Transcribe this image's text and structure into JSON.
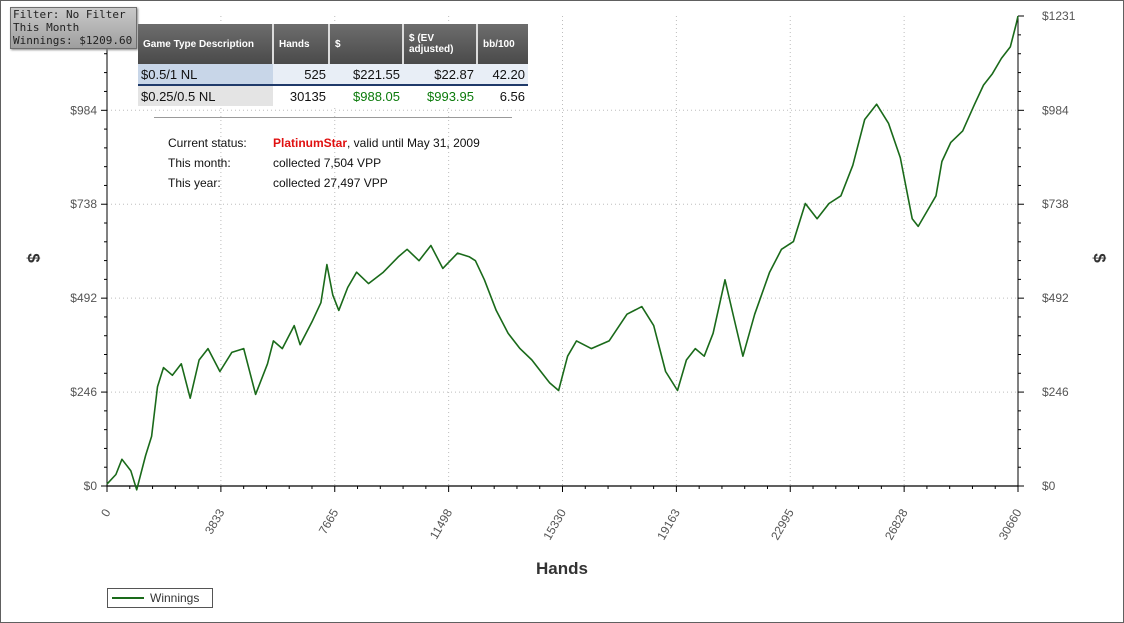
{
  "filter_box": {
    "line1": "Filter: No Filter",
    "line2": "This Month",
    "line3": "Winnings: $1209.60"
  },
  "stats_table": {
    "headers": [
      "Game Type Description",
      "Hands",
      "$",
      "$ (EV adjusted)",
      "bb/100"
    ],
    "rows": [
      [
        "$0.5/1 NL",
        "525",
        "$221.55",
        "$22.87",
        "42.20"
      ],
      [
        "$0.25/0.5 NL",
        "30135",
        "$988.05",
        "$993.95",
        "6.56"
      ]
    ]
  },
  "status": {
    "current_label": "Current status:",
    "level": "PlatinumStar",
    "valid_text": ", valid until May 31, 2009",
    "month_label": "This month:",
    "month_value": "collected 7,504 VPP",
    "year_label": "This year:",
    "year_value": "collected 27,497 VPP"
  },
  "colors": {
    "series": "#1a6a1a",
    "status_level": "#e01010",
    "table_header": "#555555",
    "green_value": "#0a7a0a"
  },
  "chart_data": {
    "type": "line",
    "xlabel": "Hands",
    "ylabel": "$",
    "ylabel_right": "$",
    "xlim": [
      0,
      30660
    ],
    "ylim": [
      0,
      1231
    ],
    "x_ticks": [
      "0",
      "3833",
      "7665",
      "11498",
      "15330",
      "19163",
      "22995",
      "26828",
      "30660"
    ],
    "y_ticks": [
      "$0",
      "$246",
      "$492",
      "$738",
      "$984",
      "$1231"
    ],
    "grid": true,
    "legend": "bottom-left",
    "series": [
      {
        "name": "Winnings",
        "x": [
          0,
          300,
          500,
          800,
          1000,
          1300,
          1500,
          1700,
          1900,
          2200,
          2500,
          2800,
          3100,
          3400,
          3800,
          4200,
          4600,
          5000,
          5400,
          5600,
          5900,
          6300,
          6500,
          6900,
          7200,
          7400,
          7600,
          7800,
          8100,
          8400,
          8800,
          9300,
          9800,
          10100,
          10500,
          10900,
          11300,
          11800,
          12200,
          12400,
          12700,
          13100,
          13500,
          13900,
          14300,
          14600,
          14900,
          15200,
          15500,
          15800,
          16300,
          16900,
          17500,
          18000,
          18400,
          18800,
          19200,
          19500,
          19800,
          20100,
          20400,
          20800,
          21100,
          21400,
          21800,
          22300,
          22700,
          23100,
          23500,
          23900,
          24300,
          24700,
          25100,
          25500,
          25900,
          26300,
          26700,
          27100,
          27300,
          27600,
          27900,
          28100,
          28400,
          28800,
          29200,
          29500,
          29800,
          30100,
          30400,
          30600,
          30660
        ],
        "y": [
          5,
          30,
          70,
          40,
          -10,
          80,
          130,
          260,
          310,
          290,
          320,
          230,
          330,
          360,
          300,
          350,
          360,
          240,
          320,
          380,
          360,
          420,
          370,
          430,
          480,
          580,
          500,
          460,
          520,
          560,
          530,
          560,
          600,
          620,
          590,
          630,
          570,
          610,
          600,
          590,
          540,
          460,
          400,
          360,
          330,
          300,
          270,
          250,
          340,
          380,
          360,
          380,
          450,
          470,
          420,
          300,
          250,
          330,
          360,
          340,
          400,
          540,
          440,
          340,
          450,
          560,
          620,
          640,
          740,
          700,
          740,
          760,
          840,
          960,
          1000,
          950,
          860,
          700,
          680,
          720,
          760,
          850,
          900,
          930,
          1000,
          1050,
          1080,
          1120,
          1150,
          1210,
          1231
        ]
      }
    ]
  }
}
